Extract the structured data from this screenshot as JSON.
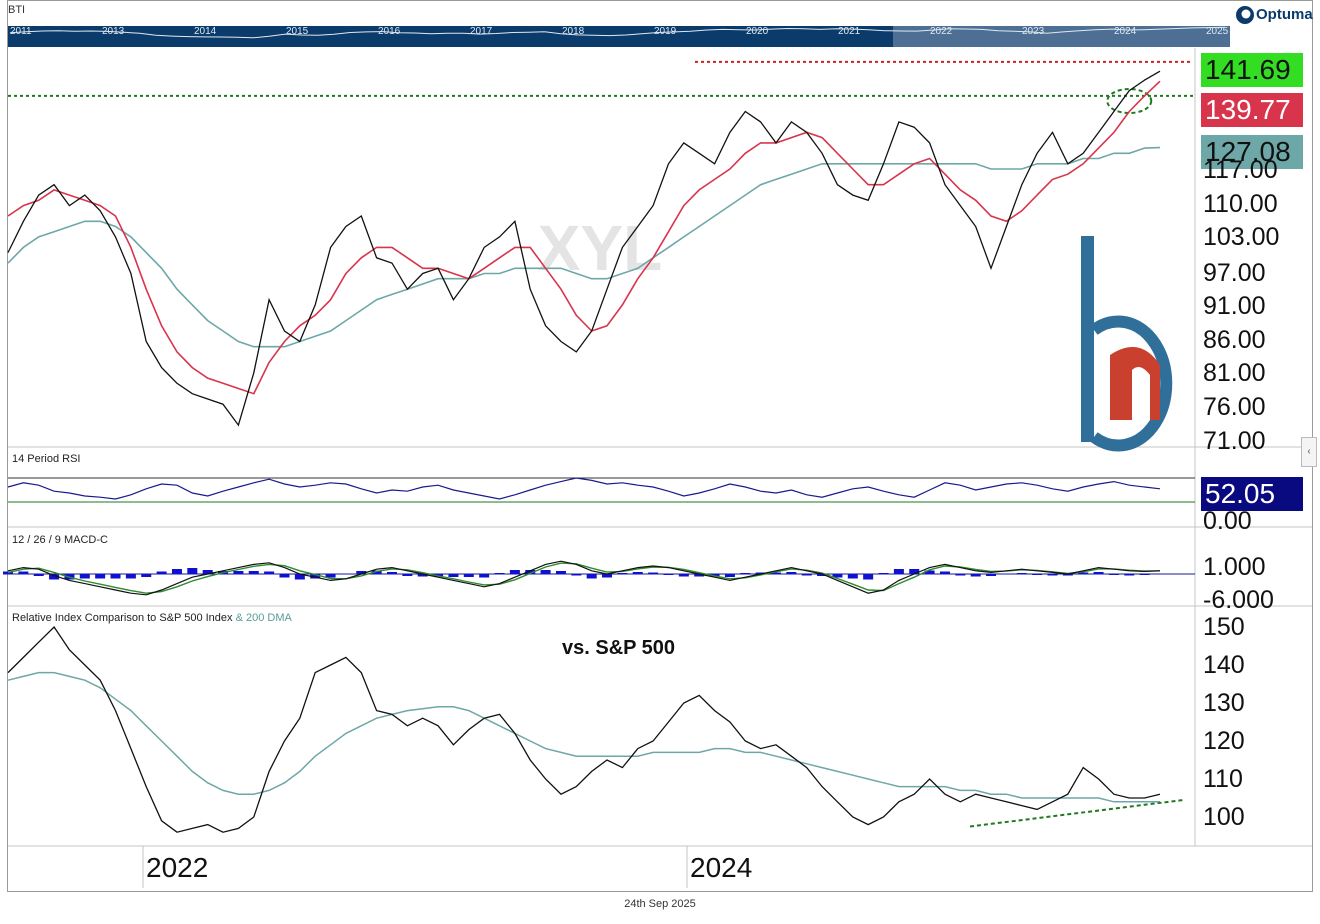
{
  "header": {
    "ticker": "BTI",
    "brand": "Optuma",
    "navigator_years": [
      "2011",
      "2013",
      "2014",
      "2015",
      "2016",
      "2017",
      "2018",
      "2019",
      "2020",
      "2021",
      "2022",
      "2023",
      "2024",
      "2025"
    ]
  },
  "watermark": "XYL",
  "annotation": "vs. S&P 500",
  "footer_date": "24th Sep 2025",
  "colors": {
    "price": "#111111",
    "sma50": "#d8344c",
    "sma200": "#6ea7a7",
    "rsi": "#1a1a8c",
    "macd": "#111111",
    "macd_signal": "#2e8b2e",
    "macd_hist": "#1010d0",
    "resistance": "#cc2222",
    "support": "#1f7a1f",
    "navigator": "#0b3b6a",
    "brand_logo": "#2f6f99",
    "brand_red": "#c9402e"
  },
  "chart_data": [
    {
      "type": "line",
      "pane": "price",
      "y_ticks": [
        "117.00",
        "110.00",
        "103.00",
        "97.00",
        "91.00",
        "86.00",
        "81.00",
        "76.00",
        "71.00"
      ],
      "last_values": {
        "price": "141.69",
        "sma50": "139.77",
        "sma200": "127.08"
      },
      "x_ticks": [
        "2022",
        "2024"
      ],
      "series": [
        {
          "key": "price",
          "values": [
            107,
            113,
            118,
            120,
            116,
            118,
            115,
            110,
            103,
            90,
            85,
            82,
            80,
            79,
            78,
            74,
            84,
            98,
            92,
            90,
            97,
            108,
            112,
            114,
            106,
            105,
            100,
            103,
            104,
            98,
            102,
            108,
            110,
            113,
            100,
            93,
            90,
            88,
            92,
            100,
            108,
            112,
            116,
            124,
            128,
            126,
            124,
            130,
            134,
            132,
            128,
            132,
            130,
            126,
            120,
            118,
            117,
            124,
            132,
            131,
            128,
            120,
            116,
            112,
            104,
            112,
            120,
            126,
            130,
            124,
            126,
            130,
            134,
            138,
            140,
            141.7
          ]
        },
        {
          "key": "sma50",
          "values": [
            114,
            116,
            117,
            119,
            118,
            117,
            116,
            114,
            108,
            100,
            93,
            88,
            85,
            83,
            82,
            81,
            80,
            86,
            90,
            93,
            95,
            98,
            103,
            106,
            108,
            108,
            106,
            104,
            104,
            103,
            102,
            104,
            106,
            108,
            108,
            104,
            100,
            95,
            92,
            93,
            97,
            102,
            106,
            111,
            116,
            119,
            121,
            123,
            126,
            128,
            128,
            129,
            130,
            129,
            126,
            123,
            120,
            120,
            122,
            124,
            125,
            122,
            119,
            117,
            114,
            113,
            115,
            118,
            121,
            122,
            124,
            127,
            130,
            134,
            137,
            139.8
          ]
        },
        {
          "key": "sma200",
          "values": [
            105,
            108,
            110,
            111,
            112,
            113,
            113,
            112,
            110,
            107,
            104,
            100,
            97,
            94,
            92,
            90,
            89,
            89,
            89,
            90,
            91,
            92,
            94,
            96,
            98,
            99,
            100,
            101,
            102,
            102,
            102,
            103,
            103,
            104,
            104,
            104,
            104,
            103,
            102,
            102,
            103,
            104,
            106,
            108,
            110,
            112,
            114,
            116,
            118,
            120,
            121,
            122,
            123,
            124,
            124,
            124,
            124,
            124,
            124,
            124,
            124,
            124,
            124,
            124,
            123,
            123,
            123,
            124,
            124,
            124,
            125,
            125,
            126,
            126,
            127,
            127.1
          ]
        }
      ]
    },
    {
      "type": "line",
      "pane": "rsi",
      "title": "14 Period RSI",
      "y_ticks": [
        "0.00"
      ],
      "last_value": "52.05",
      "overbought": 70,
      "oversold": 30,
      "values": [
        55,
        62,
        58,
        48,
        45,
        40,
        38,
        35,
        42,
        52,
        60,
        58,
        45,
        40,
        48,
        55,
        62,
        68,
        60,
        55,
        58,
        62,
        60,
        52,
        45,
        50,
        48,
        55,
        58,
        50,
        45,
        40,
        35,
        42,
        50,
        58,
        64,
        70,
        66,
        60,
        62,
        58,
        55,
        48,
        40,
        45,
        52,
        60,
        55,
        48,
        45,
        50,
        42,
        38,
        45,
        52,
        55,
        48,
        42,
        38,
        50,
        62,
        58,
        50,
        55,
        60,
        62,
        58,
        52,
        48,
        55,
        60,
        64,
        58,
        55,
        52.05
      ]
    },
    {
      "type": "line",
      "pane": "macd",
      "title": "12 / 26 / 9 MACD-C",
      "y_ticks": [
        "1.000",
        "-6.000"
      ],
      "series": [
        {
          "key": "macd",
          "values": [
            1,
            2,
            1.5,
            -0.5,
            -2,
            -3,
            -4,
            -5,
            -6,
            -6.5,
            -5,
            -3,
            -1,
            0,
            1,
            2,
            3,
            3.5,
            2,
            0,
            -1,
            -2,
            -1.5,
            0,
            1.5,
            2,
            1,
            0,
            -1,
            -2,
            -3,
            -4,
            -3,
            -1,
            1,
            3,
            4,
            3,
            1,
            0,
            1,
            2,
            2.5,
            2,
            1,
            0,
            -1,
            -2,
            -1,
            0,
            1,
            2,
            1,
            0,
            -2,
            -4,
            -6,
            -5,
            -2,
            0,
            2,
            3,
            2,
            1,
            0.5,
            1,
            1.5,
            1,
            0.5,
            0,
            1,
            2,
            1.5,
            1,
            0.8,
            1
          ]
        },
        {
          "key": "signal",
          "values": [
            0.5,
            1.5,
            1.8,
            0.5,
            -1,
            -2.2,
            -3.2,
            -4.2,
            -5.2,
            -6,
            -5.5,
            -4,
            -2.2,
            -0.8,
            0.4,
            1.4,
            2.4,
            3,
            2.6,
            1,
            -0.2,
            -1.4,
            -1.5,
            -0.6,
            0.8,
            1.6,
            1.3,
            0.4,
            -0.6,
            -1.5,
            -2.5,
            -3.4,
            -3.2,
            -1.8,
            0.2,
            2.2,
            3.4,
            3.2,
            1.8,
            0.6,
            0.8,
            1.6,
            2.2,
            2.1,
            1.4,
            0.4,
            -0.6,
            -1.5,
            -1.2,
            -0.3,
            0.7,
            1.6,
            1.2,
            0.3,
            -1.4,
            -3.2,
            -5,
            -5.2,
            -3,
            -1,
            1.3,
            2.5,
            2.2,
            1.4,
            0.8,
            0.9,
            1.3,
            1.1,
            0.7,
            0.2,
            0.7,
            1.6,
            1.6,
            1.2,
            0.9,
            1
          ]
        }
      ]
    },
    {
      "type": "line",
      "pane": "relative",
      "title": "Relative Index Comparison to S&P 500 Index",
      "title_extra": "& 200 DMA",
      "y_ticks": [
        "150",
        "140",
        "130",
        "120",
        "110",
        "100"
      ],
      "series": [
        {
          "key": "relative",
          "values": [
            138,
            142,
            146,
            150,
            144,
            140,
            136,
            128,
            118,
            108,
            99,
            96,
            97,
            98,
            96,
            97,
            100,
            112,
            120,
            126,
            138,
            140,
            142,
            138,
            128,
            127,
            124,
            126,
            124,
            119,
            123,
            126,
            127,
            122,
            115,
            110,
            106,
            108,
            112,
            115,
            113,
            118,
            120,
            125,
            130,
            132,
            128,
            125,
            120,
            118,
            119,
            116,
            113,
            108,
            104,
            100,
            98,
            100,
            104,
            106,
            110,
            106,
            104,
            106,
            105,
            104,
            103,
            102,
            104,
            106,
            113,
            110,
            106,
            105,
            105,
            106
          ]
        },
        {
          "key": "dma200",
          "values": [
            136,
            137,
            138,
            138,
            137,
            136,
            134,
            131,
            128,
            124,
            120,
            116,
            112,
            109,
            107,
            106,
            106,
            107,
            109,
            112,
            116,
            119,
            122,
            124,
            126,
            127,
            128,
            128.5,
            129,
            129,
            128,
            126,
            124,
            122,
            120,
            118,
            117,
            116,
            116,
            116,
            116,
            116,
            117,
            117,
            117,
            117,
            118,
            118,
            117,
            117,
            116,
            115,
            114,
            113,
            112,
            111,
            110,
            109,
            108,
            108,
            108,
            108,
            107,
            107,
            106,
            106,
            105,
            105,
            105,
            105,
            105,
            105,
            104,
            104,
            104,
            104
          ]
        }
      ]
    }
  ]
}
